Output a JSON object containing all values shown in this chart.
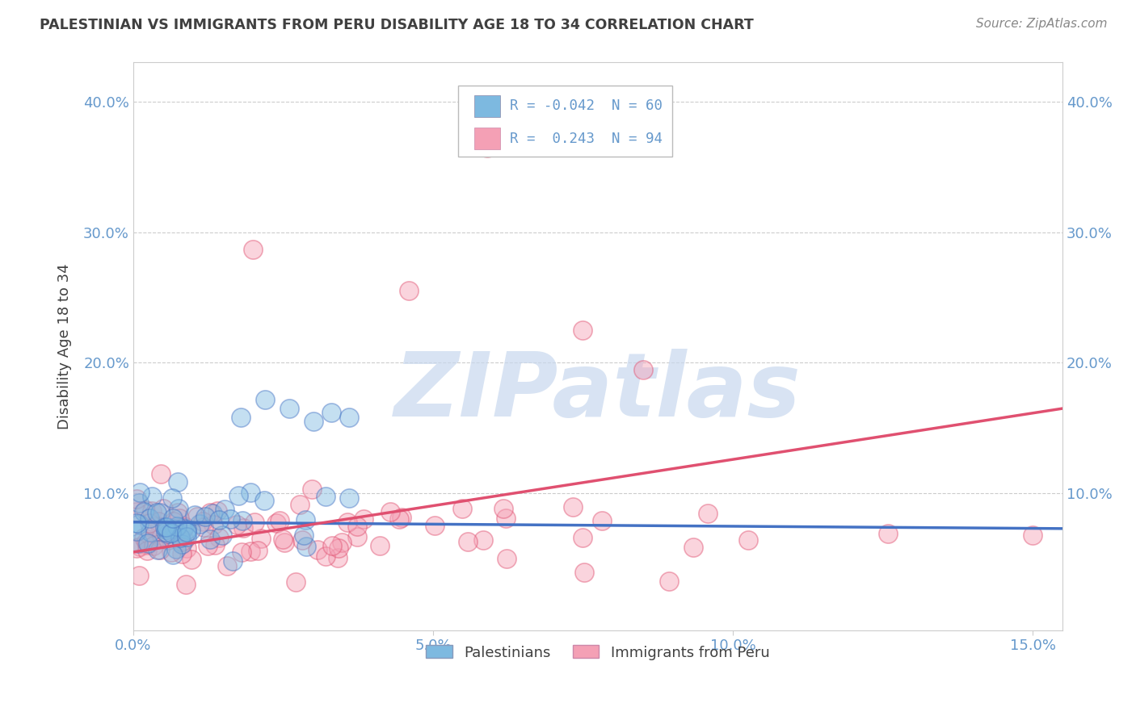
{
  "title": "PALESTINIAN VS IMMIGRANTS FROM PERU DISABILITY AGE 18 TO 34 CORRELATION CHART",
  "source": "Source: ZipAtlas.com",
  "ylabel": "Disability Age 18 to 34",
  "watermark": "ZIPatlas",
  "series1_label": "Palestinians",
  "series1_color": "#7db9e0",
  "series1_line_color": "#4472c4",
  "series1_R": "-0.042",
  "series1_N": "60",
  "series2_label": "Immigrants from Peru",
  "series2_color": "#f4a0b5",
  "series2_line_color": "#e05070",
  "series2_R": "0.243",
  "series2_N": "94",
  "xlim": [
    0.0,
    0.155
  ],
  "ylim": [
    -0.005,
    0.43
  ],
  "xticks": [
    0.0,
    0.05,
    0.1,
    0.15
  ],
  "xticklabels": [
    "0.0%",
    "5.0%",
    "10.0%",
    "15.0%"
  ],
  "yticks": [
    0.1,
    0.2,
    0.3,
    0.4
  ],
  "yticklabels": [
    "10.0%",
    "20.0%",
    "30.0%",
    "40.0%"
  ],
  "background_color": "#ffffff",
  "grid_color": "#cccccc",
  "title_color": "#404040",
  "axis_color": "#6699cc"
}
